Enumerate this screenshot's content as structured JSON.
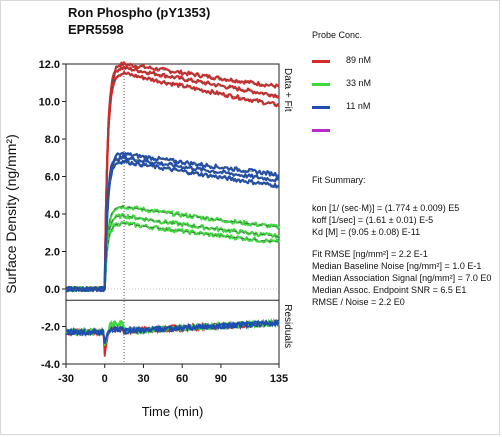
{
  "chart_data": {
    "type": "line",
    "title": "Ron Phospho (pY1353)",
    "subtitle": "EPR5598",
    "xlabel": "Time (min)",
    "ylabel": "Surface Density (ng/mm²)",
    "xlim": [
      -30,
      135
    ],
    "ylim": [
      -4.0,
      12.0
    ],
    "xticks": [
      "-30",
      "0",
      "30",
      "60",
      "90",
      "135"
    ],
    "yticks": [
      "12.0",
      "10.0",
      "8.0",
      "6.0",
      "4.0",
      "2.0",
      "0.0",
      "-2.0",
      "-4.0"
    ],
    "panel_labels": {
      "fit": "Data + Fit",
      "residuals": "Residuals"
    },
    "legend_position": "right",
    "association_end_time": 15,
    "series": [
      {
        "name": "89 nM",
        "color": "#d42a2a",
        "peaks": [
          12.0,
          11.8,
          11.5
        ],
        "ends": [
          10.8,
          10.3,
          9.8
        ]
      },
      {
        "name": "33 nM",
        "color": "#3cd83c",
        "peaks": [
          4.4,
          3.9,
          3.5
        ],
        "ends": [
          3.3,
          2.8,
          2.5
        ]
      },
      {
        "name": "11 nM",
        "color": "#1e4fb0",
        "peaks": [
          7.2,
          7.0,
          6.8
        ],
        "ends": [
          6.1,
          5.8,
          5.5
        ]
      },
      {
        "name": "",
        "color": "#b52cc7",
        "peaks": [],
        "ends": []
      }
    ]
  },
  "legend": {
    "title": "Probe Conc."
  },
  "fit_summary": {
    "heading": "Fit Summary:",
    "kon": "kon  [1/ (sec·M)]  =   (1.774 ± 0.009) E5",
    "koff": "koff  [1/sec]  =   (1.61 ± 0.01) E-5",
    "kd": "Kd  [M]  =  (9.05 ± 0.08) E-11",
    "fit_rmse": "Fit RMSE  [ng/mm²]  =   2.2 E-1",
    "baseline_noise": "Median Baseline Noise [ng/mm²]  =  1.0 E-1",
    "association_signal": "Median Association Signal [ng/mm²]  =  7.0 E0",
    "endpoint_snr": "Median Assoc. Endpoint SNR  =  6.5 E1",
    "rmse_noise": "RMSE / Noise  =   2.2 E0"
  }
}
